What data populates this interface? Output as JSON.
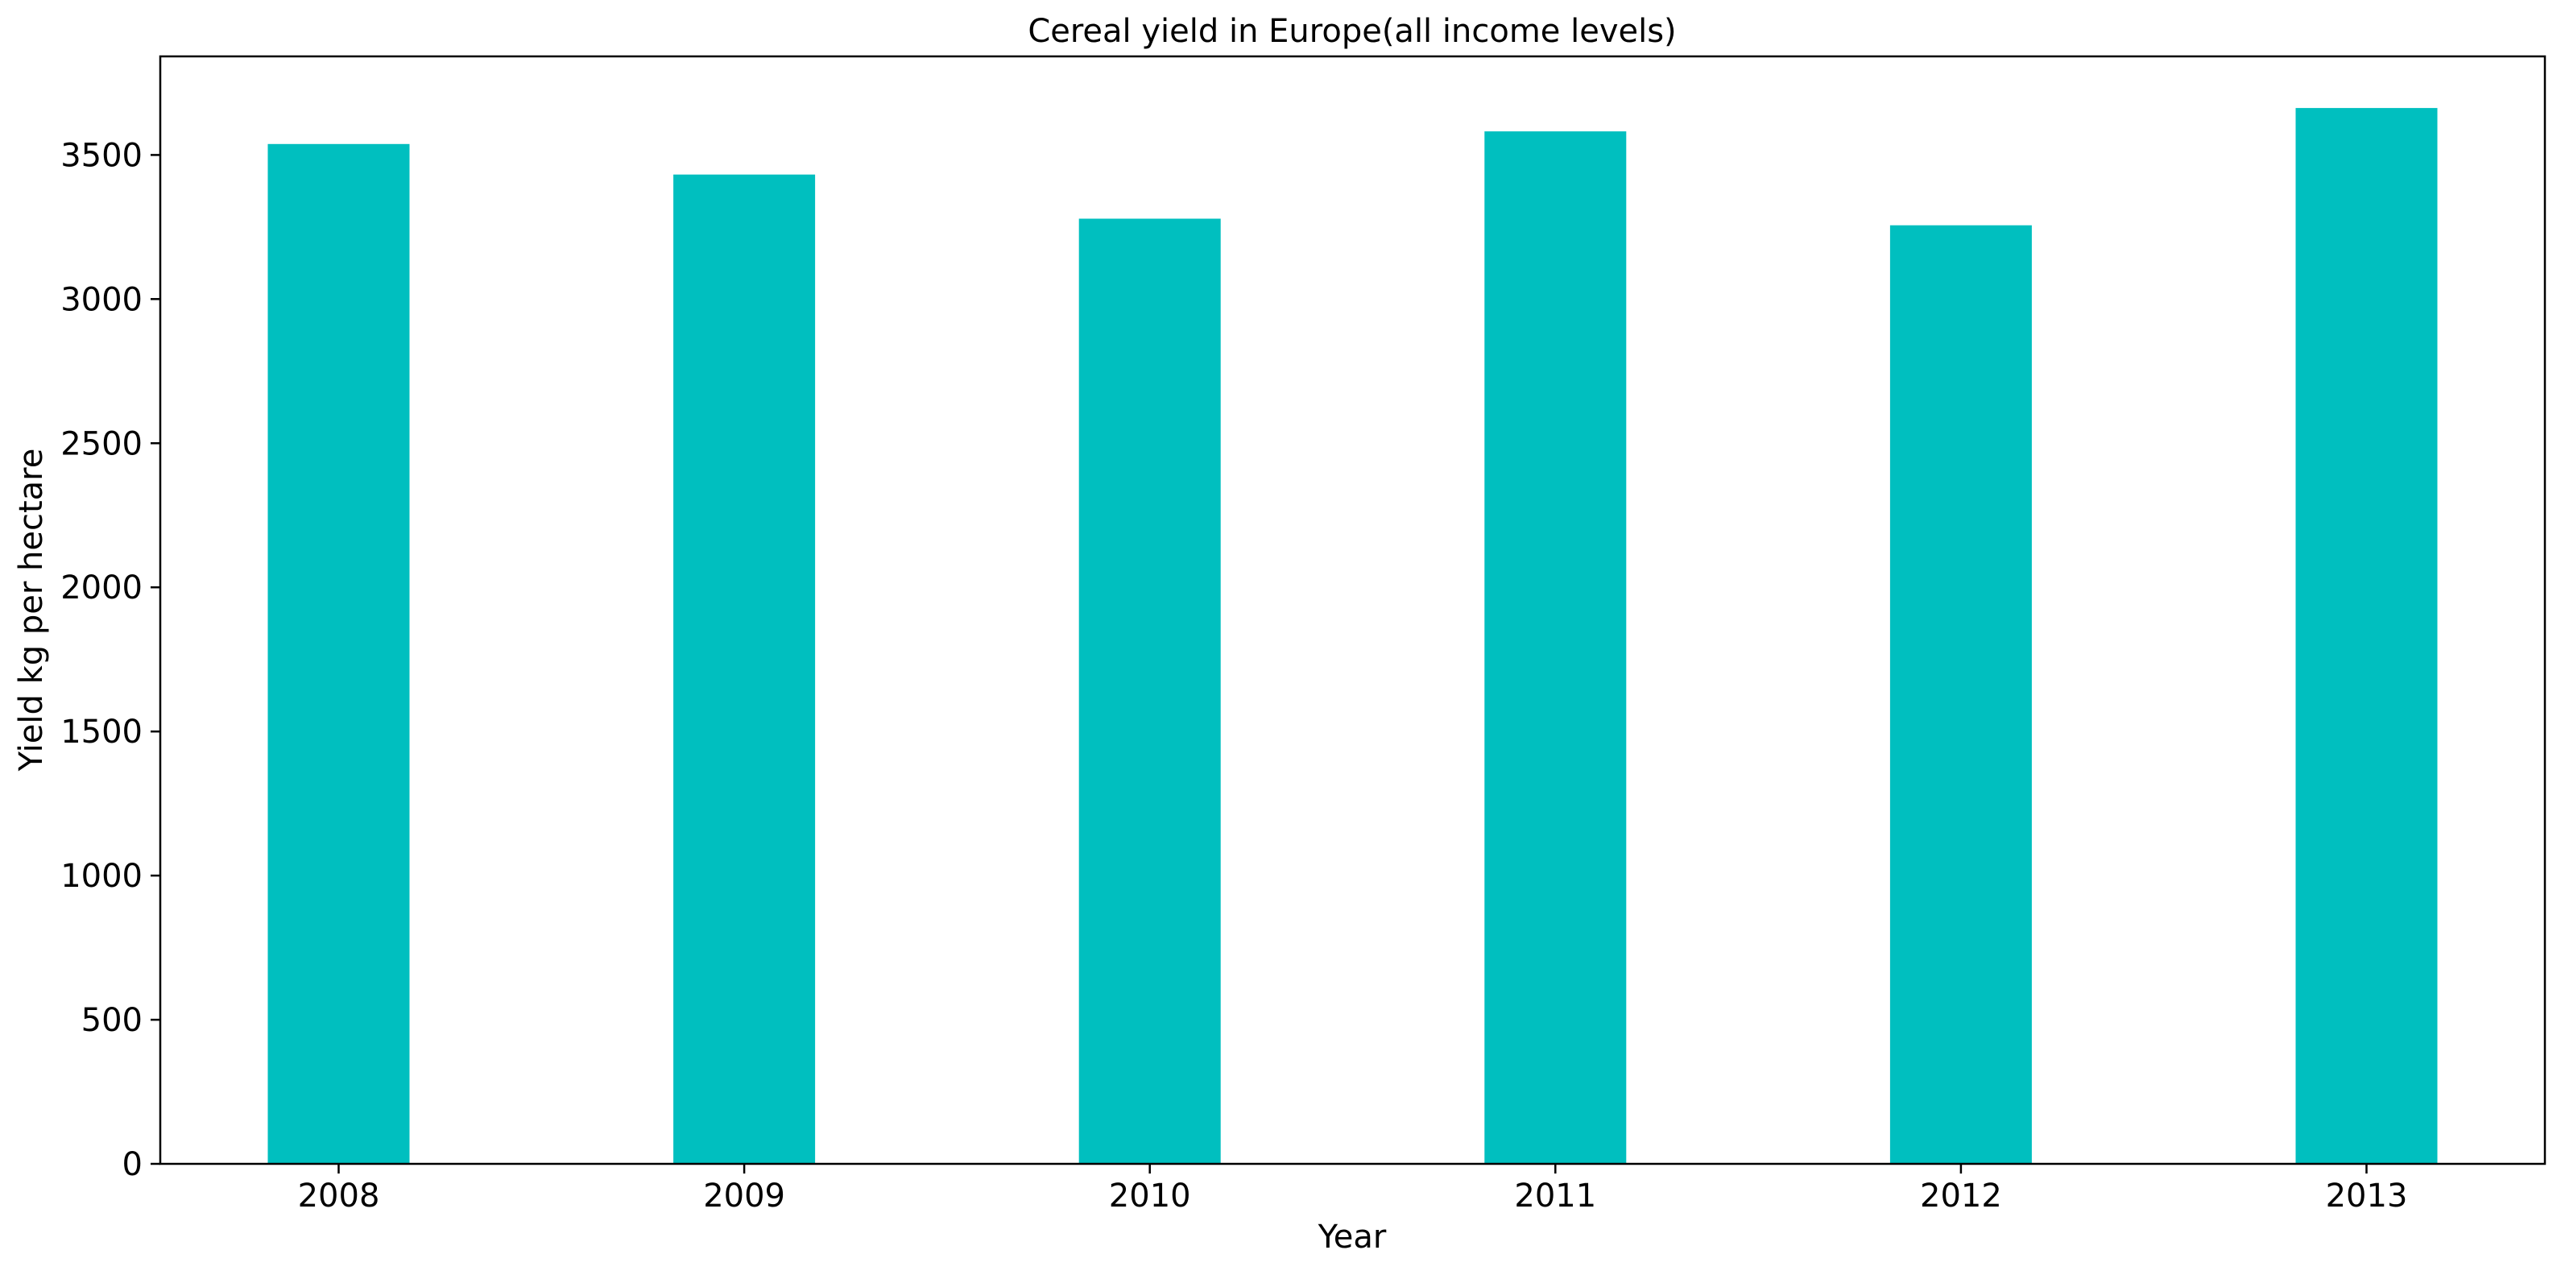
{
  "chart_data": {
    "type": "bar",
    "title": "Cereal yield in Europe(all income levels)",
    "xlabel": "Year",
    "ylabel": "Yield kg per hectare",
    "categories": [
      "2008",
      "2009",
      "2010",
      "2011",
      "2012",
      "2013"
    ],
    "values": [
      3538,
      3432,
      3279,
      3582,
      3256,
      3663
    ],
    "ylim": [
      0,
      3842
    ],
    "yticks": [
      0,
      500,
      1000,
      1500,
      2000,
      2500,
      3000,
      3500
    ],
    "grid": false,
    "legend": "none",
    "bar_color": "#00bfbf",
    "axis_color": "#000000"
  }
}
